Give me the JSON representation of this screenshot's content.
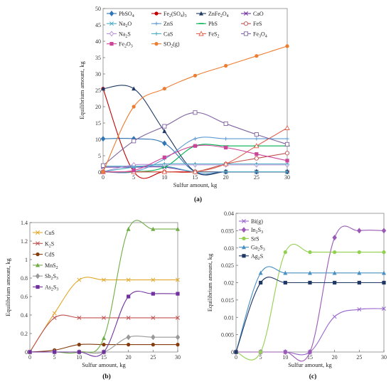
{
  "chart_data": [
    {
      "id": "a",
      "panel_label": "(a)",
      "type": "line",
      "xlabel": "Sulfur amount, kg",
      "ylabel": "Equilibrium amount, kg",
      "xlim": [
        0,
        30
      ],
      "ylim": [
        0,
        50
      ],
      "xticks": [
        0,
        5,
        10,
        15,
        20,
        25,
        30
      ],
      "yticks": [
        0,
        5,
        10,
        15,
        20,
        25,
        30,
        35,
        40,
        45,
        50
      ],
      "grid": false,
      "legend": "top-left",
      "x": [
        0,
        5,
        10,
        15,
        20,
        25,
        30
      ],
      "series": [
        {
          "name": "PbSO4",
          "label": "PbSO",
          "sub": "4",
          "color": "#2e75b6",
          "marker": "diamond",
          "values": [
            10.2,
            10.2,
            8.8,
            0.1,
            0.1,
            0.1,
            0.1
          ]
        },
        {
          "name": "Fe2(SO4)3",
          "label": "Fe",
          "sub": "2",
          "label2": "(SO",
          "sub2": "4",
          "label3": ")",
          "sub3": "3",
          "color": "#c00000",
          "marker": "dot",
          "values": [
            25.5,
            0.1,
            0.1,
            0.1,
            0.1,
            0.1,
            0.1
          ]
        },
        {
          "name": "ZnFe2O4",
          "label": "ZnFe",
          "sub": "2",
          "label2": "O",
          "sub2": "4",
          "color": "#1f3864",
          "marker": "triangle",
          "values": [
            25.5,
            25.5,
            12.5,
            0.1,
            0.1,
            0.1,
            0.1
          ]
        },
        {
          "name": "CaO",
          "label": "CaO",
          "color": "#7030a0",
          "marker": "x",
          "values": [
            1.5,
            1.5,
            1.5,
            0.1,
            0.1,
            0.1,
            0.1
          ]
        },
        {
          "name": "Na2O",
          "label": "Na",
          "sub": "2",
          "label2": "O",
          "color": "#4bacc6",
          "marker": "x",
          "values": [
            1.8,
            1.8,
            1.8,
            0.1,
            0.1,
            0.1,
            0.1
          ]
        },
        {
          "name": "ZnS",
          "label": "ZnS",
          "color": "#5b9bd5",
          "marker": "plus",
          "values": [
            0.1,
            0.1,
            4.0,
            10.2,
            10.2,
            10.2,
            10.2
          ]
        },
        {
          "name": "PbS",
          "label": "PbS",
          "color": "#00b050",
          "marker": "dash",
          "values": [
            0.1,
            0.1,
            1.5,
            8.0,
            8.0,
            8.0,
            8.0
          ]
        },
        {
          "name": "FeS",
          "label": "FeS",
          "color": "#c0504d",
          "marker": "circle-open",
          "values": [
            0.1,
            0.1,
            0.1,
            0.1,
            2.5,
            4.2,
            5.8
          ]
        },
        {
          "name": "Na2S",
          "label": "Na",
          "sub": "2",
          "label2": "S",
          "color": "#b38ed6",
          "marker": "diamond-open",
          "values": [
            0.1,
            2.2,
            2.2,
            2.2,
            2.2,
            2.2,
            2.2
          ]
        },
        {
          "name": "CaS",
          "label": "CaS",
          "color": "#4bacc6",
          "marker": "plus",
          "values": [
            0.1,
            1.5,
            2.5,
            2.5,
            2.5,
            2.5,
            2.5
          ]
        },
        {
          "name": "FeS2",
          "label": "FeS",
          "sub": "2",
          "color": "#e0604f",
          "marker": "triangle-open",
          "values": [
            0.1,
            0.1,
            0.1,
            0.1,
            2.5,
            8.0,
            13.5
          ]
        },
        {
          "name": "Fe3O4",
          "label": "Fe",
          "sub": "3",
          "label2": "O",
          "sub2": "4",
          "color": "#8064a2",
          "marker": "square-open",
          "values": [
            2.0,
            9.5,
            14.0,
            18.2,
            14.8,
            11.5,
            8.5
          ]
        },
        {
          "name": "Fe2O3",
          "label": "Fe",
          "sub": "2",
          "label2": "O",
          "sub2": "3",
          "color": "#cc4499",
          "marker": "square",
          "values": [
            0.1,
            0.5,
            4.5,
            8.0,
            7.5,
            5.5,
            3.5
          ]
        },
        {
          "name": "SO2(g)",
          "label": "SO",
          "sub": "2",
          "label2": "(g)",
          "color": "#ed7d31",
          "marker": "dot",
          "values": [
            0.1,
            20.0,
            25.5,
            29.5,
            32.5,
            35.5,
            38.5
          ]
        }
      ]
    },
    {
      "id": "b",
      "panel_label": "(b)",
      "type": "line",
      "xlabel": "Sulfur amount, kg",
      "ylabel": "Equilibrium amount, kg",
      "xlim": [
        0,
        30
      ],
      "ylim": [
        0,
        1.4
      ],
      "xticks": [
        0,
        5,
        10,
        15,
        20,
        25,
        30
      ],
      "yticks": [
        0,
        0.2,
        0.4,
        0.6,
        0.8,
        1,
        1.2,
        1.4
      ],
      "grid": false,
      "legend": "top-left",
      "x": [
        0,
        5,
        10,
        15,
        20,
        25,
        30
      ],
      "series": [
        {
          "name": "CuS",
          "label": "CuS",
          "color": "#e3a82b",
          "marker": "x",
          "values": [
            0.0,
            0.42,
            0.78,
            0.78,
            0.78,
            0.78,
            0.78
          ]
        },
        {
          "name": "K2S",
          "label": "K",
          "sub": "2",
          "label2": "S",
          "color": "#c0504d",
          "marker": "x",
          "values": [
            0.0,
            0.37,
            0.37,
            0.37,
            0.37,
            0.37,
            0.37
          ]
        },
        {
          "name": "CdS",
          "label": "CdS",
          "color": "#843c0c",
          "marker": "dot",
          "values": [
            0.0,
            0.02,
            0.08,
            0.08,
            0.08,
            0.08,
            0.08
          ]
        },
        {
          "name": "MnS2",
          "label": "MnS",
          "sub": "2",
          "color": "#70ad47",
          "marker": "triangle",
          "values": [
            0.0,
            0.0,
            0.0,
            0.15,
            1.33,
            1.33,
            1.33
          ]
        },
        {
          "name": "Sb2S3",
          "label": "Sb",
          "sub": "2",
          "label2": "S",
          "sub2": "3",
          "color": "#999999",
          "marker": "diamond",
          "values": [
            0.0,
            0.0,
            0.0,
            0.0,
            0.16,
            0.16,
            0.16
          ]
        },
        {
          "name": "As2S3",
          "label": "As",
          "sub": "2",
          "label2": "S",
          "sub2": "3",
          "color": "#7030a0",
          "marker": "square",
          "values": [
            0.0,
            0.0,
            0.0,
            0.0,
            0.6,
            0.63,
            0.63
          ]
        }
      ]
    },
    {
      "id": "c",
      "panel_label": "(c)",
      "type": "line",
      "xlabel": "Sulfur amount, kg",
      "ylabel": "Equilibrium amount, kg",
      "xlim": [
        0,
        30
      ],
      "ylim": [
        0,
        0.04
      ],
      "xticks": [
        0,
        5,
        10,
        15,
        20,
        25,
        30
      ],
      "yticks": [
        "0",
        "0.005",
        "0.01",
        "0.015",
        "0.02",
        "0.025",
        "0.03",
        "0.035",
        "0.04"
      ],
      "grid": false,
      "legend": "top-left",
      "x": [
        0,
        5,
        10,
        15,
        20,
        25,
        30
      ],
      "series": [
        {
          "name": "Bi(g)",
          "label": "Bi(g)",
          "color": "#9966cc",
          "marker": "x",
          "values": [
            0.0,
            0.0,
            0.0,
            0.0,
            0.0102,
            0.0123,
            0.0125
          ]
        },
        {
          "name": "In2S3",
          "label": "In",
          "sub": "2",
          "label2": "S",
          "sub2": "3",
          "color": "#9b59b6",
          "marker": "diamond",
          "values": [
            0.0,
            0.0,
            0.0,
            0.0,
            0.033,
            0.035,
            0.035
          ]
        },
        {
          "name": "SrS",
          "label": "SrS",
          "color": "#92d050",
          "marker": "dot",
          "values": [
            0.0,
            0.0,
            0.0288,
            0.0288,
            0.0288,
            0.0288,
            0.0288
          ]
        },
        {
          "name": "Ga2S3",
          "label": "Ga",
          "sub": "2",
          "label2": "S",
          "sub2": "3",
          "color": "#4a90c2",
          "marker": "triangle",
          "values": [
            0.0,
            0.0228,
            0.0228,
            0.0228,
            0.0228,
            0.0228,
            0.0228
          ]
        },
        {
          "name": "Ag2S",
          "label": "Ag",
          "sub": "2",
          "label2": "S",
          "color": "#1f3864",
          "marker": "square",
          "values": [
            0.0,
            0.02,
            0.02,
            0.02,
            0.02,
            0.02,
            0.02
          ]
        }
      ]
    }
  ]
}
